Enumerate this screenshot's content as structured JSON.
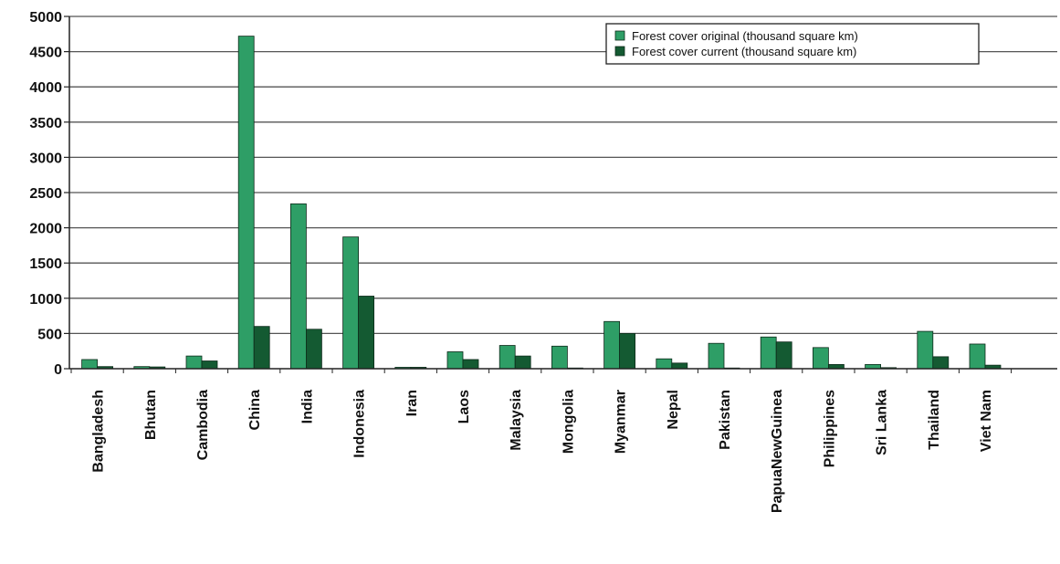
{
  "chart_data": {
    "type": "bar",
    "title": "",
    "xlabel": "",
    "ylabel": "",
    "ylim": [
      0,
      5000
    ],
    "yticks": [
      0,
      500,
      1000,
      1500,
      2000,
      2500,
      3000,
      3500,
      4000,
      4500,
      5000
    ],
    "grid": true,
    "legend_position": "top-right",
    "categories": [
      "Bangladesh",
      "Bhutan",
      "Cambodia",
      "China",
      "India",
      "Indonesia",
      "Iran",
      "Laos",
      "Malaysia",
      "Mongolia",
      "Myanmar",
      "Nepal",
      "Pakistan",
      "PapuaNewGuinea",
      "Philippines",
      "Sri Lanka",
      "Thailand",
      "Viet Nam"
    ],
    "series": [
      {
        "name": "Forest cover original (thousand square km)",
        "color": "#2e9e66",
        "values": [
          130,
          30,
          180,
          4720,
          2340,
          1870,
          20,
          240,
          330,
          320,
          670,
          140,
          360,
          450,
          300,
          60,
          530,
          350
        ]
      },
      {
        "name": "Forest cover current (thousand square km)",
        "color": "#145a32",
        "values": [
          30,
          25,
          110,
          600,
          560,
          1030,
          20,
          130,
          180,
          10,
          500,
          80,
          10,
          380,
          60,
          15,
          170,
          50
        ]
      }
    ]
  }
}
